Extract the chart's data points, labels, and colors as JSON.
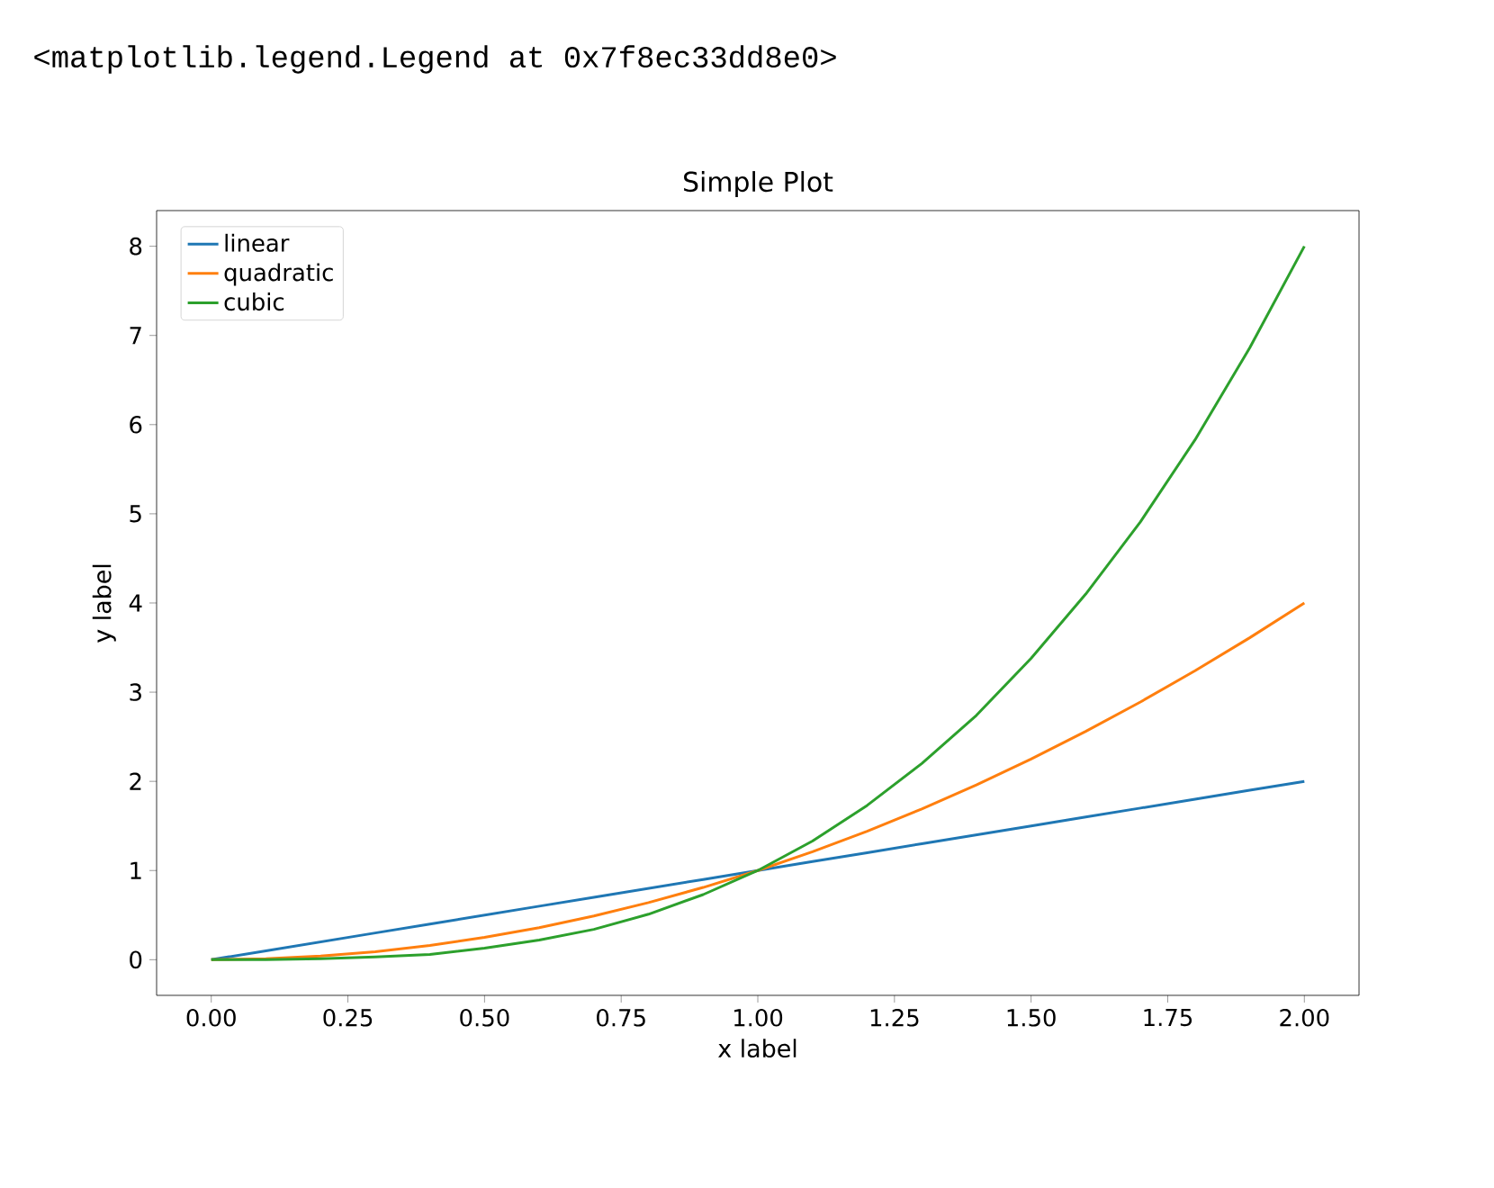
{
  "chart_data": {
    "type": "line",
    "title": "Simple Plot",
    "xlabel": "x label",
    "ylabel": "y label",
    "annotations": [
      "<matplotlib.legend.Legend at 0x7f8ec33dd8e0>"
    ],
    "x": [
      0,
      0.1,
      0.2,
      0.3,
      0.4,
      0.5,
      0.6,
      0.7,
      0.8,
      0.9,
      1.0,
      1.1,
      1.2,
      1.3,
      1.4,
      1.5,
      1.6,
      1.7,
      1.8,
      1.9,
      2.0
    ],
    "series": [
      {
        "name": "linear",
        "color": "#1f77b4",
        "values": [
          0,
          0.1,
          0.2,
          0.3,
          0.4,
          0.5,
          0.6,
          0.7,
          0.8,
          0.9,
          1.0,
          1.1,
          1.2,
          1.3,
          1.4,
          1.5,
          1.6,
          1.7,
          1.8,
          1.9,
          2.0
        ]
      },
      {
        "name": "quadratic",
        "color": "#ff7f0e",
        "values": [
          0,
          0.01,
          0.04,
          0.09,
          0.16,
          0.25,
          0.36,
          0.49,
          0.64,
          0.81,
          1.0,
          1.21,
          1.44,
          1.69,
          1.96,
          2.25,
          2.56,
          2.89,
          3.24,
          3.61,
          4.0
        ]
      },
      {
        "name": "cubic",
        "color": "#2ca02c",
        "values": [
          0,
          0.0,
          0.01,
          0.03,
          0.06,
          0.13,
          0.22,
          0.34,
          0.51,
          0.73,
          1.0,
          1.33,
          1.73,
          2.2,
          2.74,
          3.38,
          4.1,
          4.91,
          5.83,
          6.86,
          8.0
        ]
      }
    ],
    "xlim": [
      -0.1,
      2.1
    ],
    "ylim": [
      -0.4,
      8.4
    ],
    "xticks": [
      {
        "value": 0,
        "label": "0.00"
      },
      {
        "value": 0.25,
        "label": "0.25"
      },
      {
        "value": 0.5,
        "label": "0.50"
      },
      {
        "value": 0.75,
        "label": "0.75"
      },
      {
        "value": 1,
        "label": "1.00"
      },
      {
        "value": 1.25,
        "label": "1.25"
      },
      {
        "value": 1.5,
        "label": "1.50"
      },
      {
        "value": 1.75,
        "label": "1.75"
      },
      {
        "value": 2,
        "label": "2.00"
      }
    ],
    "yticks": [
      {
        "value": 0,
        "label": "0"
      },
      {
        "value": 1,
        "label": "1"
      },
      {
        "value": 2,
        "label": "2"
      },
      {
        "value": 3,
        "label": "3"
      },
      {
        "value": 4,
        "label": "4"
      },
      {
        "value": 5,
        "label": "5"
      },
      {
        "value": 6,
        "label": "6"
      },
      {
        "value": 7,
        "label": "7"
      },
      {
        "value": 8,
        "label": "8"
      }
    ],
    "grid": false,
    "legend": "top left",
    "marker": "none",
    "line_style": "solid"
  }
}
